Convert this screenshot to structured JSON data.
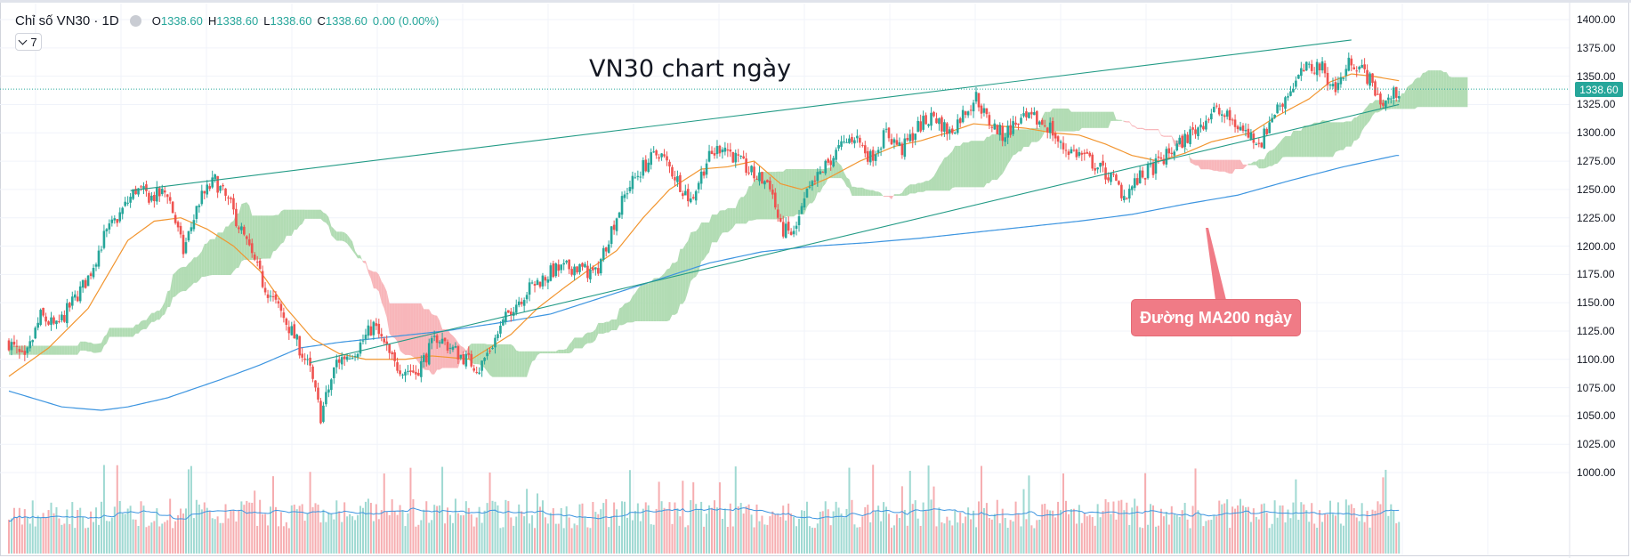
{
  "header": {
    "symbol": "Chỉ số VN30 · 1D",
    "ohlc": [
      {
        "key": "O",
        "value": "1338.60"
      },
      {
        "key": "H",
        "value": "1338.60"
      },
      {
        "key": "L",
        "value": "1338.60"
      },
      {
        "key": "C",
        "value": "1338.60"
      }
    ],
    "change": "0.00 (0.00%)",
    "indicator_count": "7"
  },
  "annotations": {
    "title": "VN30 chart ngày",
    "ma200_label": "Đường MA200 ngày"
  },
  "last_price_badge": "1338.60",
  "colors": {
    "up": "#26a69a",
    "down": "#ef5350",
    "ma_short": "#f2952f",
    "ma200": "#3d95e0",
    "trendline": "#239b86",
    "cloud_up": "#a5d6a7",
    "cloud_down": "#f7a9ae",
    "callout": "#f07b86"
  },
  "chart_data": {
    "type": "candlestick",
    "price_axis": {
      "ticks": [
        "1400.00",
        "1375.00",
        "1350.00",
        "1325.00",
        "1300.00",
        "1275.00",
        "1250.00",
        "1225.00",
        "1200.00",
        "1175.00",
        "1150.00",
        "1125.00",
        "1100.00",
        "1075.00",
        "1050.00",
        "1025.00",
        "1000.00"
      ],
      "ylim": [
        988,
        1403
      ]
    },
    "last_price": 1338.6,
    "close_path": [
      [
        0,
        1115
      ],
      [
        6,
        1098
      ],
      [
        12,
        1138
      ],
      [
        18,
        1128
      ],
      [
        24,
        1150
      ],
      [
        30,
        1172
      ],
      [
        36,
        1208
      ],
      [
        42,
        1228
      ],
      [
        48,
        1250
      ],
      [
        54,
        1243
      ],
      [
        60,
        1248
      ],
      [
        66,
        1195
      ],
      [
        72,
        1240
      ],
      [
        78,
        1258
      ],
      [
        84,
        1235
      ],
      [
        90,
        1202
      ],
      [
        96,
        1168
      ],
      [
        102,
        1145
      ],
      [
        108,
        1120
      ],
      [
        114,
        1090
      ],
      [
        118,
        1050
      ],
      [
        124,
        1098
      ],
      [
        132,
        1110
      ],
      [
        138,
        1130
      ],
      [
        146,
        1095
      ],
      [
        154,
        1088
      ],
      [
        162,
        1120
      ],
      [
        170,
        1105
      ],
      [
        178,
        1092
      ],
      [
        184,
        1118
      ],
      [
        190,
        1145
      ],
      [
        198,
        1165
      ],
      [
        206,
        1178
      ],
      [
        214,
        1182
      ],
      [
        222,
        1175
      ],
      [
        228,
        1215
      ],
      [
        234,
        1250
      ],
      [
        240,
        1270
      ],
      [
        246,
        1283
      ],
      [
        252,
        1262
      ],
      [
        258,
        1240
      ],
      [
        264,
        1275
      ],
      [
        270,
        1290
      ],
      [
        276,
        1275
      ],
      [
        282,
        1262
      ],
      [
        288,
        1255
      ],
      [
        292,
        1215
      ],
      [
        297,
        1210
      ],
      [
        302,
        1245
      ],
      [
        308,
        1268
      ],
      [
        314,
        1285
      ],
      [
        320,
        1298
      ],
      [
        326,
        1278
      ],
      [
        332,
        1300
      ],
      [
        338,
        1285
      ],
      [
        344,
        1305
      ],
      [
        350,
        1315
      ],
      [
        356,
        1300
      ],
      [
        362,
        1320
      ],
      [
        366,
        1332
      ],
      [
        370,
        1312
      ],
      [
        376,
        1298
      ],
      [
        382,
        1310
      ],
      [
        388,
        1312
      ],
      [
        394,
        1305
      ],
      [
        398,
        1288
      ],
      [
        406,
        1280
      ],
      [
        412,
        1270
      ],
      [
        418,
        1258
      ],
      [
        422,
        1245
      ],
      [
        428,
        1260
      ],
      [
        436,
        1275
      ],
      [
        442,
        1288
      ],
      [
        450,
        1305
      ],
      [
        456,
        1320
      ],
      [
        462,
        1312
      ],
      [
        468,
        1300
      ],
      [
        474,
        1292
      ],
      [
        478,
        1315
      ],
      [
        484,
        1335
      ],
      [
        490,
        1355
      ],
      [
        496,
        1360
      ],
      [
        502,
        1338
      ],
      [
        508,
        1365
      ],
      [
        514,
        1350
      ],
      [
        520,
        1325
      ],
      [
        526,
        1338
      ]
    ],
    "ma_short_path": [
      [
        0,
        1085
      ],
      [
        15,
        1110
      ],
      [
        30,
        1145
      ],
      [
        45,
        1205
      ],
      [
        55,
        1222
      ],
      [
        65,
        1225
      ],
      [
        75,
        1215
      ],
      [
        85,
        1200
      ],
      [
        95,
        1178
      ],
      [
        105,
        1145
      ],
      [
        115,
        1118
      ],
      [
        125,
        1105
      ],
      [
        135,
        1100
      ],
      [
        150,
        1100
      ],
      [
        160,
        1103
      ],
      [
        175,
        1100
      ],
      [
        190,
        1122
      ],
      [
        200,
        1145
      ],
      [
        210,
        1163
      ],
      [
        220,
        1180
      ],
      [
        230,
        1196
      ],
      [
        240,
        1225
      ],
      [
        250,
        1250
      ],
      [
        262,
        1268
      ],
      [
        272,
        1270
      ],
      [
        282,
        1275
      ],
      [
        292,
        1255
      ],
      [
        300,
        1250
      ],
      [
        310,
        1260
      ],
      [
        322,
        1275
      ],
      [
        335,
        1288
      ],
      [
        345,
        1293
      ],
      [
        355,
        1300
      ],
      [
        365,
        1308
      ],
      [
        375,
        1306
      ],
      [
        385,
        1304
      ],
      [
        395,
        1300
      ],
      [
        405,
        1298
      ],
      [
        415,
        1290
      ],
      [
        425,
        1280
      ],
      [
        435,
        1275
      ],
      [
        445,
        1282
      ],
      [
        455,
        1292
      ],
      [
        470,
        1300
      ],
      [
        480,
        1315
      ],
      [
        492,
        1330
      ],
      [
        500,
        1345
      ],
      [
        508,
        1352
      ],
      [
        516,
        1350
      ],
      [
        526,
        1346
      ]
    ],
    "ma200_path": [
      [
        0,
        1072
      ],
      [
        20,
        1058
      ],
      [
        35,
        1055
      ],
      [
        45,
        1058
      ],
      [
        60,
        1066
      ],
      [
        80,
        1082
      ],
      [
        95,
        1095
      ],
      [
        110,
        1110
      ],
      [
        125,
        1115
      ],
      [
        145,
        1120
      ],
      [
        165,
        1125
      ],
      [
        185,
        1132
      ],
      [
        205,
        1140
      ],
      [
        225,
        1155
      ],
      [
        245,
        1170
      ],
      [
        265,
        1185
      ],
      [
        285,
        1195
      ],
      [
        305,
        1200
      ],
      [
        325,
        1203
      ],
      [
        345,
        1207
      ],
      [
        365,
        1212
      ],
      [
        385,
        1217
      ],
      [
        405,
        1222
      ],
      [
        425,
        1228
      ],
      [
        445,
        1237
      ],
      [
        465,
        1245
      ],
      [
        485,
        1258
      ],
      [
        505,
        1270
      ],
      [
        525,
        1280
      ]
    ],
    "trendlines": [
      {
        "from": [
          46,
          1249
        ],
        "to": [
          508,
          1382
        ]
      },
      {
        "from": [
          114,
          1097
        ],
        "to": [
          526,
          1325
        ]
      }
    ],
    "volume_axis_note": "volume bars shown in lower pane"
  }
}
